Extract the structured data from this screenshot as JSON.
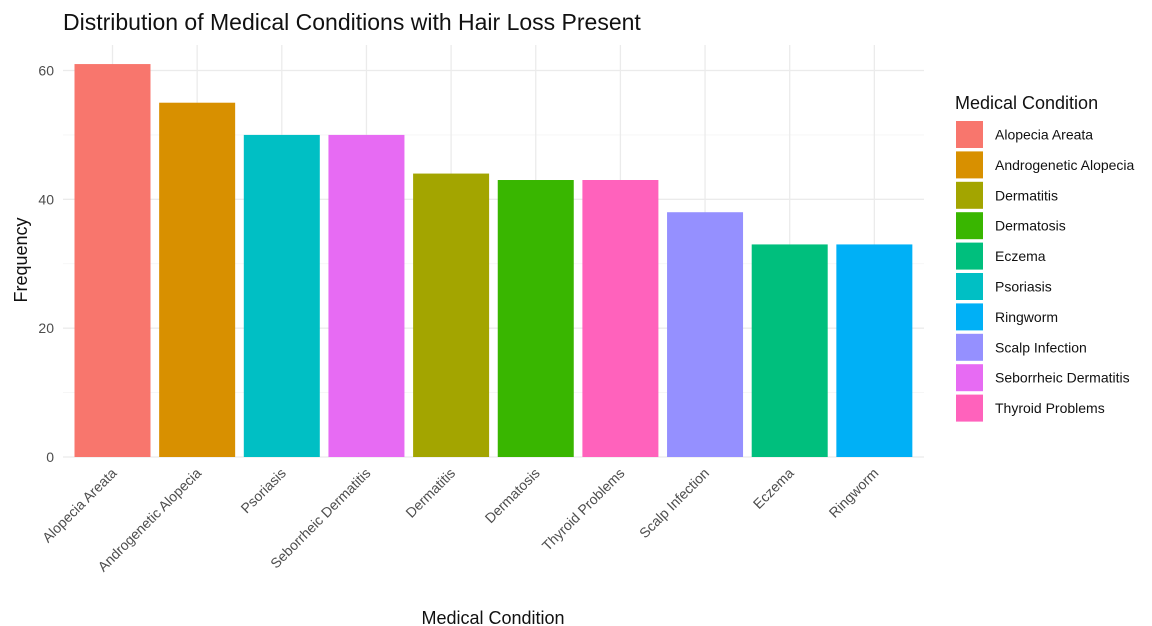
{
  "chart_data": {
    "type": "bar",
    "title": "Distribution of Medical Conditions with Hair Loss Present",
    "xlabel": "Medical Condition",
    "ylabel": "Frequency",
    "ylim": [
      0,
      63
    ],
    "yticks": [
      0,
      20,
      40,
      60
    ],
    "grid": true,
    "categories": [
      "Alopecia Areata",
      "Androgenetic Alopecia",
      "Psoriasis",
      "Seborrheic Dermatitis",
      "Dermatitis",
      "Dermatosis",
      "Thyroid Problems",
      "Scalp Infection",
      "Eczema",
      "Ringworm"
    ],
    "values": [
      61,
      55,
      50,
      50,
      44,
      43,
      43,
      38,
      33,
      33
    ],
    "colors": {
      "Alopecia Areata": "#F8766D",
      "Androgenetic Alopecia": "#D89000",
      "Dermatitis": "#A3A500",
      "Dermatosis": "#39B600",
      "Eczema": "#00BF7D",
      "Psoriasis": "#00BFC4",
      "Ringworm": "#00B0F6",
      "Scalp Infection": "#9590FF",
      "Seborrheic Dermatitis": "#E76BF3",
      "Thyroid Problems": "#FF62BC"
    },
    "legend": {
      "title": "Medical Condition",
      "position": "right",
      "entries": [
        "Alopecia Areata",
        "Androgenetic Alopecia",
        "Dermatitis",
        "Dermatosis",
        "Eczema",
        "Psoriasis",
        "Ringworm",
        "Scalp Infection",
        "Seborrheic Dermatitis",
        "Thyroid Problems"
      ]
    }
  }
}
